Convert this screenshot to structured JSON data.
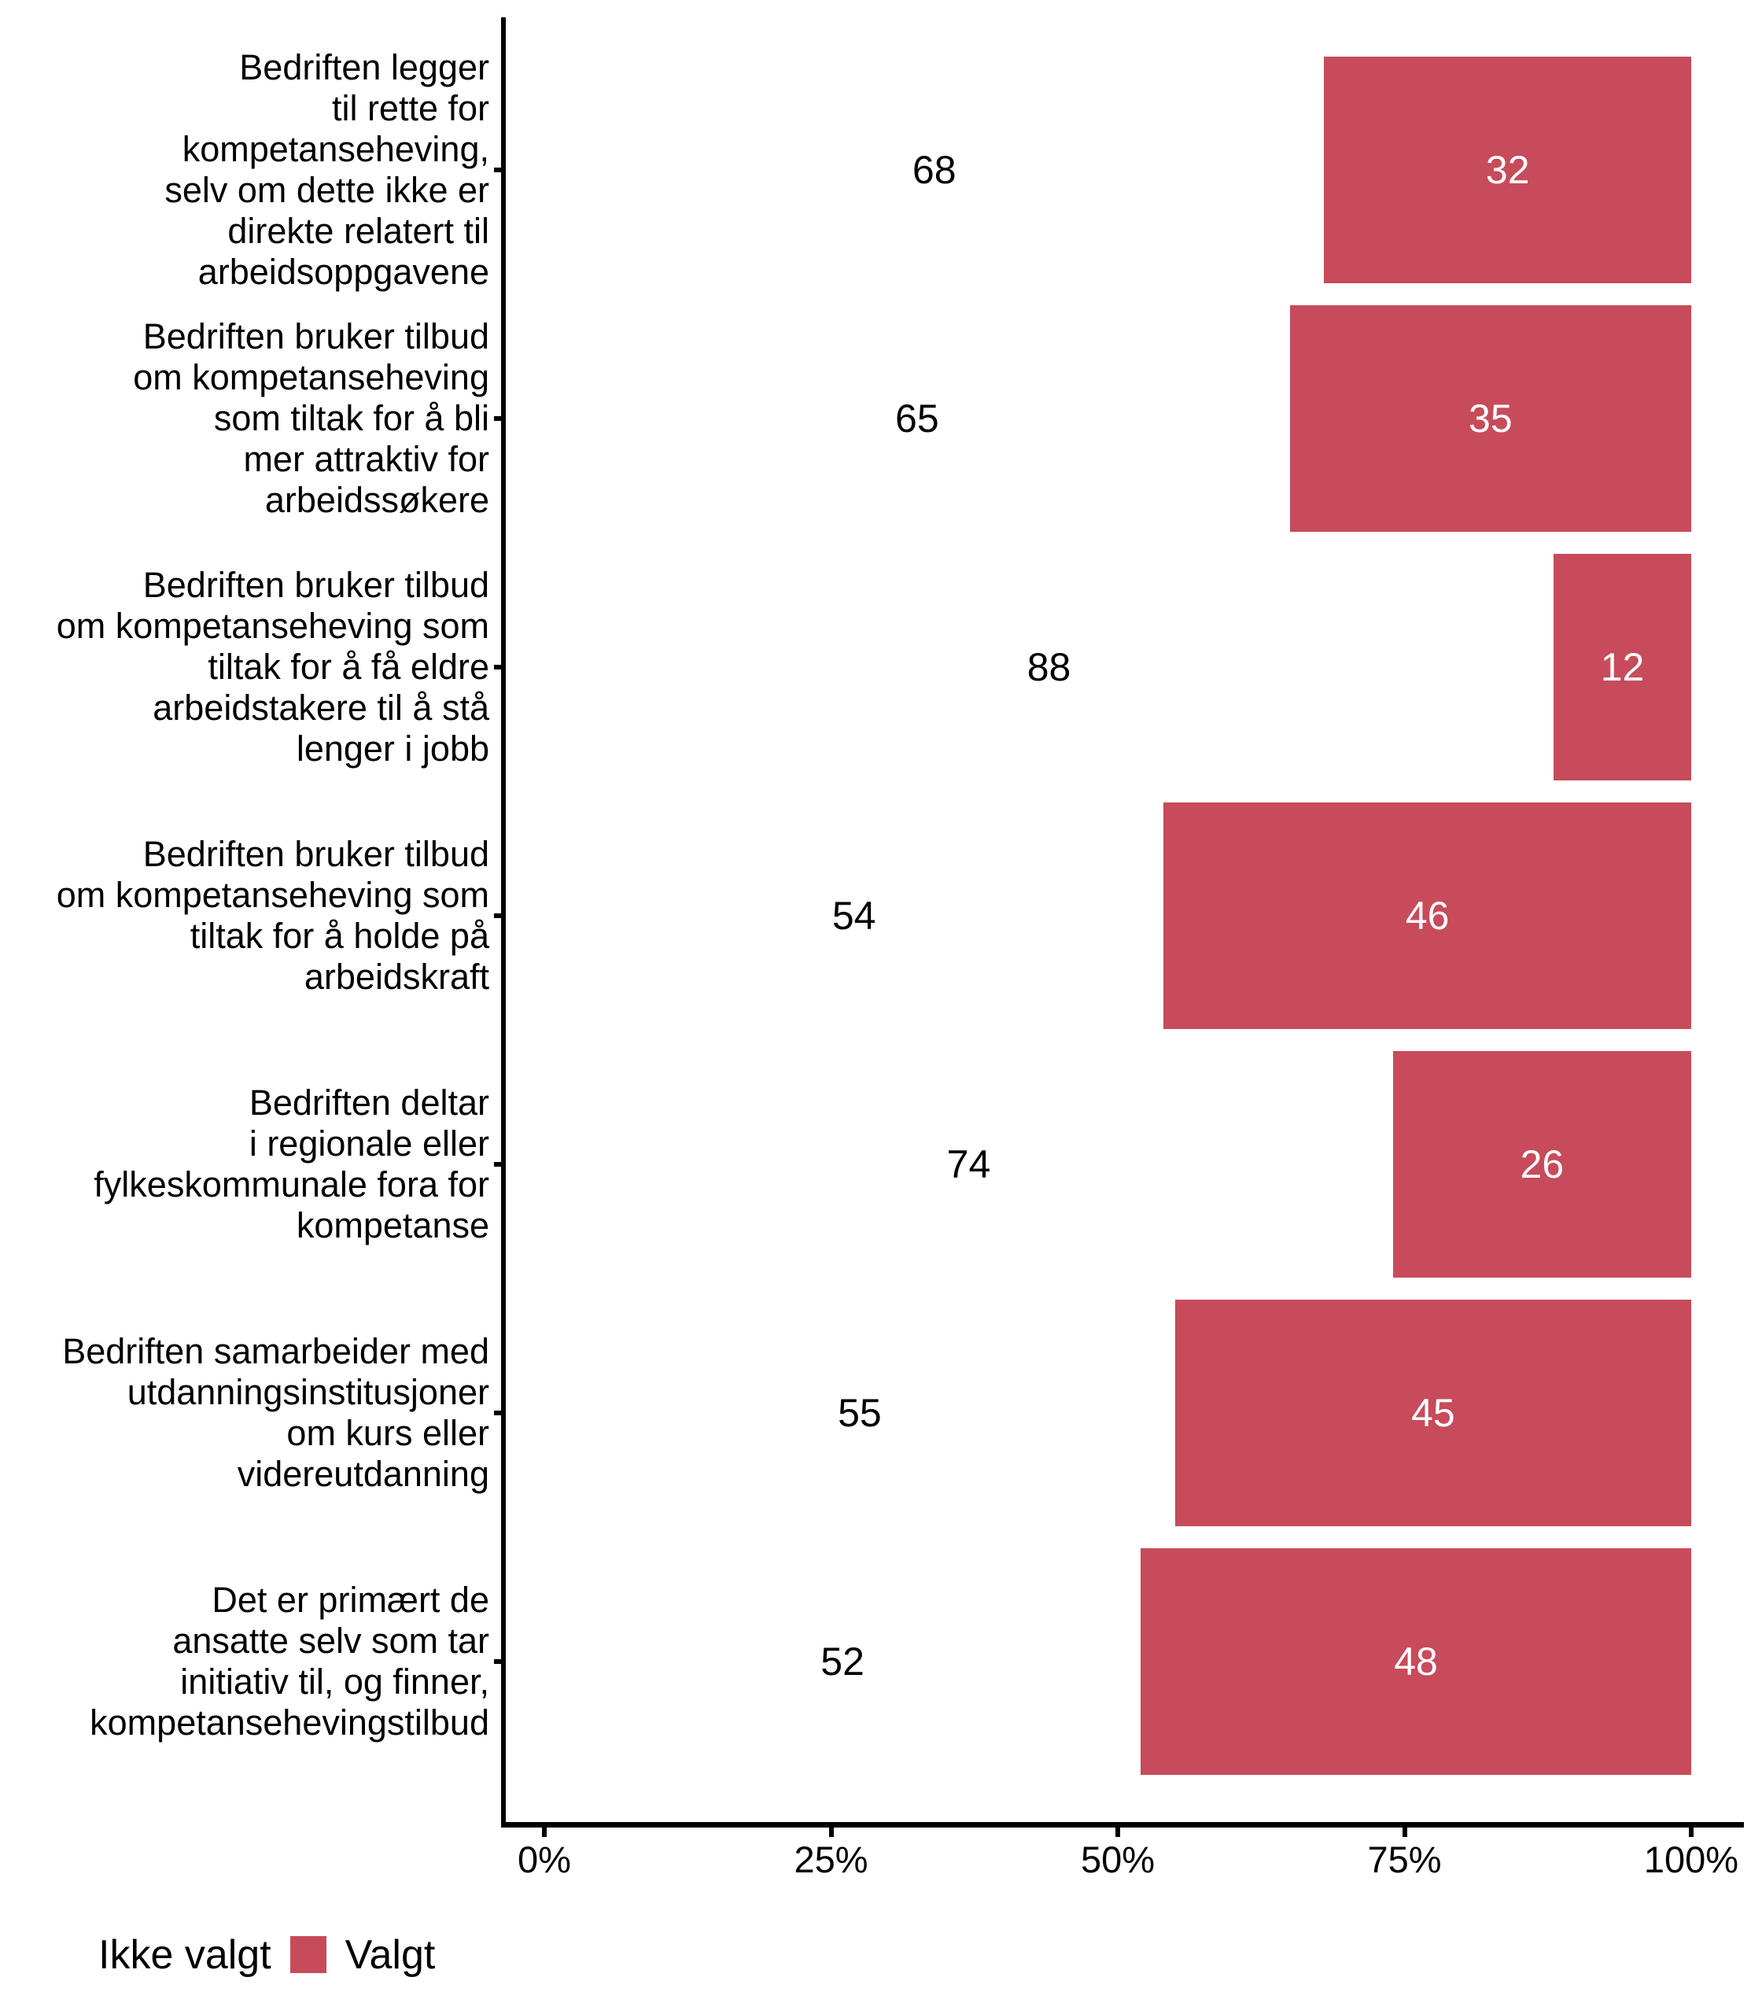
{
  "chart_data": {
    "type": "bar",
    "orientation": "horizontal",
    "stacked": true,
    "unit": "percent",
    "title": "",
    "xlabel": "",
    "ylabel": "",
    "grid": false,
    "categories": [
      "Bedriften legger\ntil rette for\nkompetanseheving,\nselv om dette ikke er\ndirekte relatert til\narbeidsoppgavene",
      "Bedriften bruker tilbud\nom kompetanseheving\nsom tiltak for å bli\nmer attraktiv for\narbeidssøkere",
      "Bedriften bruker tilbud\nom kompetanseheving som\ntiltak for å få eldre\narbeidstakere til å stå\nlenger i jobb",
      "Bedriften bruker tilbud\nom kompetanseheving som\ntiltak for å holde på\narbeidskraft",
      "Bedriften deltar\ni regionale eller\nfylkeskommunale fora for\nkompetanse",
      "Bedriften samarbeider med\nutdanningsinstitusjoner\nom kurs eller\nvidereutdanning",
      "Det er primært de\nansatte selv som tar\ninitiativ til, og finner,\nkompetansehevingstilbud"
    ],
    "series": [
      {
        "name": "Ikke valgt",
        "color": "#FFFFFF",
        "text_color": "#000000",
        "values": [
          68,
          65,
          88,
          54,
          74,
          55,
          52
        ]
      },
      {
        "name": "Valgt",
        "color": "#C74B5B",
        "text_color": "#FFFFFF",
        "values": [
          32,
          35,
          12,
          46,
          26,
          45,
          48
        ]
      }
    ],
    "x_axis": {
      "range": [
        0,
        100
      ],
      "tick_values": [
        0,
        25,
        50,
        75,
        100
      ],
      "tick_labels": [
        "0%",
        "25%",
        "50%",
        "75%",
        "100%"
      ]
    },
    "legend": {
      "position": "bottom-left",
      "entries": [
        {
          "label": "Ikke valgt",
          "color": "#FFFFFF"
        },
        {
          "label": "Valgt",
          "color": "#C74B5B"
        }
      ]
    }
  }
}
